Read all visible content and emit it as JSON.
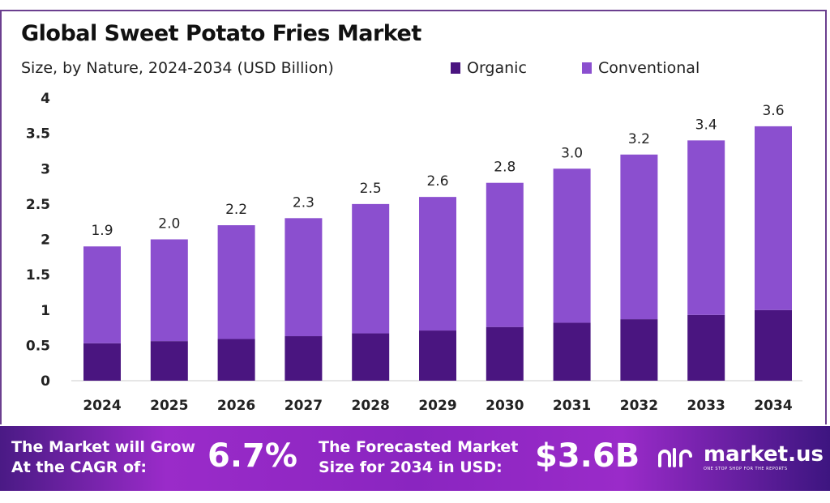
{
  "chart_data": {
    "type": "bar",
    "stacked": true,
    "title": "Global Sweet Potato Fries Market",
    "subtitle": "Size, by Nature, 2024-2034 (USD Billion)",
    "categories": [
      "2024",
      "2025",
      "2026",
      "2027",
      "2028",
      "2029",
      "2030",
      "2031",
      "2032",
      "2033",
      "2034"
    ],
    "series": [
      {
        "name": "Organic",
        "color": "#4a1580",
        "values": [
          0.53,
          0.56,
          0.59,
          0.63,
          0.67,
          0.71,
          0.76,
          0.82,
          0.87,
          0.93,
          1.0
        ]
      },
      {
        "name": "Conventional",
        "color": "#8b4fcf",
        "values": [
          1.37,
          1.44,
          1.61,
          1.67,
          1.83,
          1.89,
          2.04,
          2.18,
          2.33,
          2.47,
          2.6
        ]
      }
    ],
    "totals_labels": [
      "1.9",
      "2.0",
      "2.2",
      "2.3",
      "2.5",
      "2.6",
      "2.8",
      "3.0",
      "3.2",
      "3.4",
      "3.6"
    ],
    "totals": [
      1.9,
      2.0,
      2.2,
      2.3,
      2.5,
      2.6,
      2.8,
      3.0,
      3.2,
      3.4,
      3.6
    ],
    "yticks": [
      "0",
      "0.5",
      "1",
      "1.5",
      "2",
      "2.5",
      "3",
      "3.5",
      "4"
    ],
    "ylim": [
      0,
      4
    ],
    "grid": false,
    "legend": "top-right"
  },
  "footer": {
    "cagr_text_1": "The Market will Grow",
    "cagr_text_2": "At the CAGR of:",
    "cagr_value": "6.7%",
    "forecast_text_1": "The Forecasted Market",
    "forecast_text_2": "Size for 2034 in USD:",
    "forecast_value": "$3.6B",
    "logo_name": "market.us",
    "logo_tagline": "ONE STOP SHOP FOR THE REPORTS"
  }
}
